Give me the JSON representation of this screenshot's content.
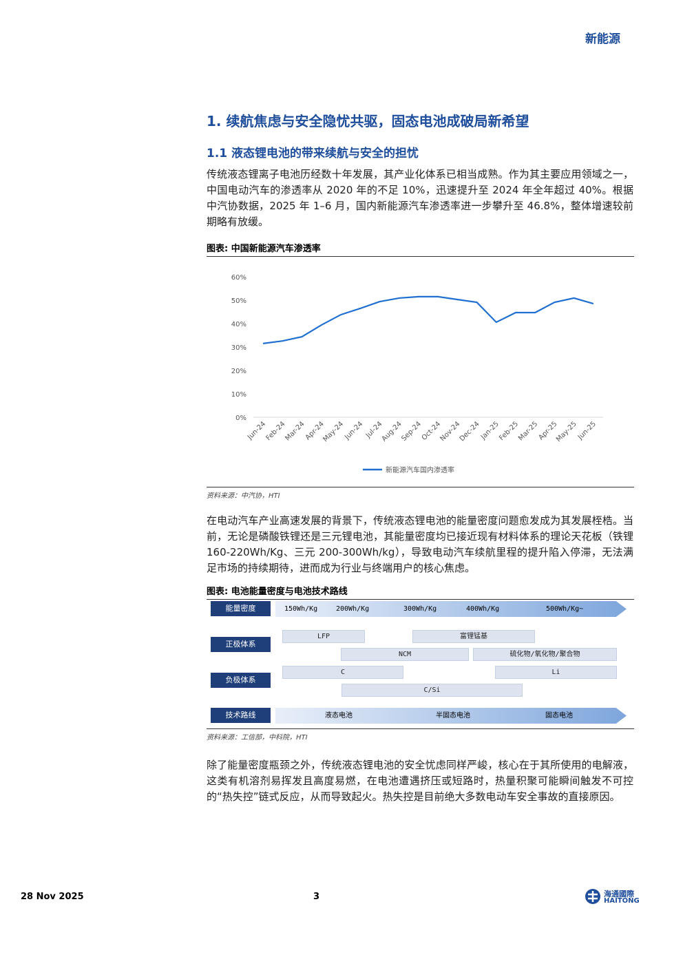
{
  "header": {
    "sector": "新能源"
  },
  "section_title": "1. 续航焦虑与安全隐忧共驱，固态电池成破局新希望",
  "subsection_title": "1.1 液态锂电池的带来续航与安全的担忧",
  "paragraphs": [
    "传统液态锂离子电池历经数十年发展，其产业化体系已相当成熟。作为其主要应用领域之一，中国电动汽车的渗透率从 2020 年的不足 10%，迅速提升至 2024 年全年超过 40%。根据中汽协数据，2025 年 1–6 月，国内新能源汽车渗透率进一步攀升至 46.8%，整体增速较前期略有放缓。",
    "在电动汽车产业高速发展的背景下，传统液态锂电池的能量密度问题愈发成为其发展桎梏。当前，无论是磷酸铁锂还是三元锂电池，其能量密度均已接近现有材料体系的理论天花板（铁锂 160-220Wh/Kg、三元 200-300Wh/kg），导致电动汽车续航里程的提升陷入停滞，无法满足市场的持续期待，进而成为行业与终端用户的核心焦虑。",
    "除了能量密度瓶颈之外，传统液态锂电池的安全忧虑同样严峻，核心在于其所使用的电解液，这类有机溶剂易挥发且高度易燃，在电池遭遇挤压或短路时，热量积聚可能瞬间触发不可控的“热失控”链式反应，从而导致起火。热失控是目前绝大多数电动车安全事故的直接原因。"
  ],
  "figure1": {
    "caption": "图表: 中国新能源汽车渗透率",
    "source": "资料来源：中汽协，HTI",
    "chart": {
      "type": "line",
      "categories": [
        "Jun-24",
        "Feb-24",
        "Mar-24",
        "Apr-24",
        "May-24",
        "Jun-24",
        "Jul-24",
        "Aug-24",
        "Sep-24",
        "Oct-24",
        "Nov-24",
        "Dec-24",
        "Jan-25",
        "Feb-25",
        "Mar-25",
        "Apr-25",
        "May-25",
        "Jun-25"
      ],
      "series": [
        {
          "name": "新能源汽车国内渗透率",
          "color": "#1f6fd1",
          "values": [
            31.5,
            32.6,
            34.4,
            39.4,
            43.8,
            46.5,
            49.4,
            50.9,
            51.5,
            51.5,
            50.3,
            49.1,
            40.6,
            44.7,
            44.7,
            49.1,
            50.9,
            48.5
          ]
        }
      ],
      "ylim": [
        0,
        60
      ],
      "yticks": [
        {
          "value": 0,
          "label": "0%"
        },
        {
          "value": 10,
          "label": "10%"
        },
        {
          "value": 20,
          "label": "20%"
        },
        {
          "value": 30,
          "label": "30%"
        },
        {
          "value": 40,
          "label": "40%"
        },
        {
          "value": 50,
          "label": "50%"
        },
        {
          "value": 60,
          "label": "60%"
        }
      ],
      "grid": false,
      "legend": "bottom"
    }
  },
  "figure2": {
    "caption": "图表: 电池能量密度与电池技术路线",
    "source": "资料来源：工信部，中科院，HTI",
    "energy_density": {
      "label": "能量密度",
      "ticks": [
        "150Wh/Kg",
        "200Wh/Kg",
        "300Wh/Kg",
        "400Wh/Kg",
        "500Wh/Kg~"
      ]
    },
    "cathode": {
      "label": "正极体系",
      "items": [
        "LFP",
        "富锂锰基",
        "NCM",
        "硫化物/氧化物/聚合物"
      ]
    },
    "anode": {
      "label": "负极体系",
      "items": [
        "C",
        "Li",
        "C/Si"
      ]
    },
    "route": {
      "label": "技术路线",
      "stages": [
        "液态电池",
        "半固态电池",
        "固态电池"
      ]
    }
  },
  "footer": {
    "date": "28 Nov 2025",
    "page": "3",
    "logo_cn": "海通國際",
    "logo_en": "HAITONG"
  }
}
